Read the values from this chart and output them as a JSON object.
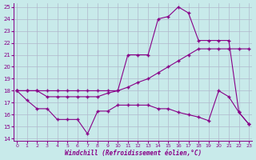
{
  "xlabel": "Windchill (Refroidissement éolien,°C)",
  "background_color": "#c8eaea",
  "line_color": "#880088",
  "grid_color": "#b0b8cc",
  "xlim": [
    0,
    23
  ],
  "ylim": [
    14,
    25
  ],
  "xticks": [
    0,
    1,
    2,
    3,
    4,
    5,
    6,
    7,
    8,
    9,
    10,
    11,
    12,
    13,
    14,
    15,
    16,
    17,
    18,
    19,
    20,
    21,
    22,
    23
  ],
  "yticks": [
    14,
    15,
    16,
    17,
    18,
    19,
    20,
    21,
    22,
    23,
    24,
    25
  ],
  "series": [
    {
      "x": [
        0,
        1,
        2,
        3,
        4,
        5,
        6,
        7,
        8,
        9,
        10,
        11,
        12,
        13,
        14,
        15,
        16,
        17,
        18,
        19,
        20,
        21,
        22,
        23
      ],
      "y": [
        18,
        18,
        18,
        18,
        18,
        18,
        18,
        18,
        18,
        18,
        18,
        21,
        21,
        21,
        24,
        24.2,
        25.0,
        24.5,
        22.2,
        22.2,
        22.2,
        22.2,
        16.2,
        15.2
      ]
    },
    {
      "x": [
        0,
        1,
        2,
        3,
        4,
        5,
        6,
        7,
        8,
        9,
        10,
        11,
        12,
        13,
        14,
        15,
        16,
        17,
        18,
        19,
        20,
        21,
        22,
        23
      ],
      "y": [
        18,
        18,
        18,
        17.5,
        17.5,
        17.5,
        17.5,
        17.5,
        17.5,
        17.8,
        18.0,
        18.3,
        18.7,
        19.0,
        19.5,
        20.0,
        20.5,
        21.0,
        21.5,
        21.5,
        21.5,
        21.5,
        21.5,
        21.5
      ]
    },
    {
      "x": [
        0,
        1,
        2,
        3,
        4,
        5,
        6,
        7,
        8,
        9,
        10,
        11,
        12,
        13,
        14,
        15,
        16,
        17,
        18,
        19,
        20,
        21,
        22,
        23
      ],
      "y": [
        18,
        17.2,
        16.5,
        16.5,
        15.6,
        15.6,
        15.6,
        14.4,
        16.3,
        16.3,
        16.8,
        16.8,
        16.8,
        16.8,
        16.5,
        16.5,
        16.2,
        16.0,
        15.8,
        15.5,
        18.0,
        17.5,
        16.2,
        15.2
      ]
    }
  ]
}
